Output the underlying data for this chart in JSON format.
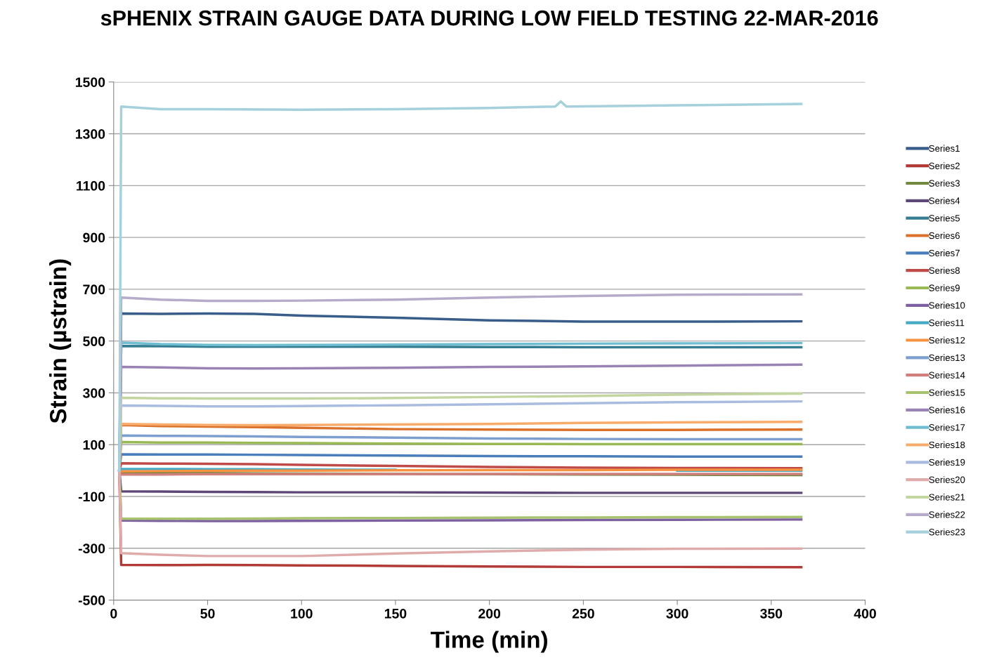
{
  "chart_data": {
    "type": "line",
    "title": "sPHENIX STRAIN GAUGE DATA DURING LOW FIELD TESTING 22-MAR-2016",
    "xlabel": "Time (min)",
    "ylabel": "Strain (µstrain)",
    "x": [
      3,
      4,
      25,
      50,
      75,
      100,
      150,
      200,
      250,
      300,
      366
    ],
    "xlim": [
      0,
      400
    ],
    "xticks": [
      0,
      50,
      100,
      150,
      200,
      250,
      300,
      350,
      400
    ],
    "ylim": [
      -500,
      1500
    ],
    "yticks": [
      -500,
      -300,
      -100,
      100,
      300,
      500,
      700,
      900,
      1100,
      1300,
      1500
    ],
    "grid": "y",
    "legend": "right",
    "marker": "none",
    "line_style": "solid",
    "series": [
      {
        "name": "Series1",
        "color": "#385d8a",
        "values": [
          0,
          606,
          605,
          606,
          605,
          598,
          590,
          580,
          575,
          575,
          576
        ]
      },
      {
        "name": "Series2",
        "color": "#b23b38",
        "values": [
          0,
          -364,
          -365,
          -364,
          -365,
          -366,
          -368,
          -370,
          -372,
          -372,
          -373
        ]
      },
      {
        "name": "Series3",
        "color": "#71893f",
        "values": [
          0,
          -8,
          -9,
          -10,
          -11,
          -12,
          -13,
          -14,
          -15,
          -16,
          -17
        ]
      },
      {
        "name": "Series4",
        "color": "#5c4776",
        "values": [
          0,
          -80,
          -81,
          -82,
          -83,
          -84,
          -84,
          -85,
          -86,
          -86,
          -86
        ]
      },
      {
        "name": "Series5",
        "color": "#357d91",
        "values": [
          0,
          481,
          480,
          478,
          478,
          478,
          478,
          477,
          476,
          476,
          476
        ]
      },
      {
        "name": "Series6",
        "color": "#d9712a",
        "values": [
          0,
          176,
          172,
          170,
          168,
          165,
          160,
          158,
          157,
          157,
          158
        ]
      },
      {
        "name": "Series7",
        "color": "#4a7ebb",
        "values": [
          0,
          63,
          62,
          62,
          61,
          60,
          58,
          56,
          55,
          54,
          54
        ]
      },
      {
        "name": "Series8",
        "color": "#be4b48",
        "values": [
          0,
          28,
          27,
          26,
          25,
          22,
          18,
          14,
          11,
          10,
          9
        ]
      },
      {
        "name": "Series9",
        "color": "#98b954",
        "values": [
          0,
          110,
          108,
          108,
          107,
          106,
          104,
          103,
          102,
          102,
          102
        ]
      },
      {
        "name": "Series10",
        "color": "#7d60a0",
        "values": [
          0,
          -193,
          -194,
          -195,
          -195,
          -194,
          -193,
          -192,
          -191,
          -190,
          -189
        ]
      },
      {
        "name": "Series11",
        "color": "#46aac5",
        "values": [
          0,
          6,
          6,
          5,
          5,
          4,
          3,
          null,
          null,
          0,
          0
        ]
      },
      {
        "name": "Series12",
        "color": "#f69240",
        "values": [
          0,
          -3,
          -2,
          -1,
          0,
          0,
          1,
          2,
          2,
          3,
          3
        ]
      },
      {
        "name": "Series13",
        "color": "#7c9fd0",
        "values": [
          0,
          135,
          134,
          133,
          132,
          130,
          127,
          124,
          122,
          121,
          121
        ]
      },
      {
        "name": "Series14",
        "color": "#d07f7d",
        "values": [
          0,
          -15,
          -15,
          -14,
          -14,
          -14,
          -14,
          -13,
          -13,
          -13,
          -13
        ]
      },
      {
        "name": "Series15",
        "color": "#a7c36f",
        "values": [
          0,
          -186,
          -186,
          -186,
          -185,
          -184,
          -183,
          -182,
          -181,
          -180,
          -179
        ]
      },
      {
        "name": "Series16",
        "color": "#9983b5",
        "values": [
          0,
          400,
          398,
          395,
          394,
          395,
          397,
          400,
          402,
          405,
          409
        ]
      },
      {
        "name": "Series17",
        "color": "#6fbdd1",
        "values": [
          0,
          494,
          488,
          485,
          484,
          485,
          486,
          488,
          490,
          491,
          492
        ]
      },
      {
        "name": "Series18",
        "color": "#f9ab6b",
        "values": [
          0,
          180,
          178,
          176,
          175,
          176,
          178,
          180,
          184,
          186,
          188
        ]
      },
      {
        "name": "Series19",
        "color": "#a9bce0",
        "values": [
          0,
          251,
          250,
          248,
          248,
          249,
          252,
          256,
          260,
          264,
          267
        ]
      },
      {
        "name": "Series20",
        "color": "#e0acab",
        "values": [
          0,
          -319,
          -325,
          -330,
          -330,
          -330,
          -320,
          -312,
          -305,
          -302,
          -301
        ]
      },
      {
        "name": "Series21",
        "color": "#c4d6a0",
        "values": [
          0,
          281,
          279,
          278,
          278,
          278,
          280,
          284,
          288,
          293,
          297
        ]
      },
      {
        "name": "Series22",
        "color": "#b7abcb",
        "values": [
          0,
          668,
          660,
          655,
          655,
          656,
          660,
          668,
          674,
          679,
          680
        ]
      },
      {
        "name": "Series23",
        "color": "#a5d0dc",
        "x": [
          3,
          4,
          25,
          50,
          100,
          150,
          200,
          235,
          238,
          241,
          300,
          366
        ],
        "values": [
          0,
          1405,
          1395,
          1395,
          1393,
          1395,
          1400,
          1405,
          1425,
          1405,
          1410,
          1415
        ]
      }
    ]
  }
}
